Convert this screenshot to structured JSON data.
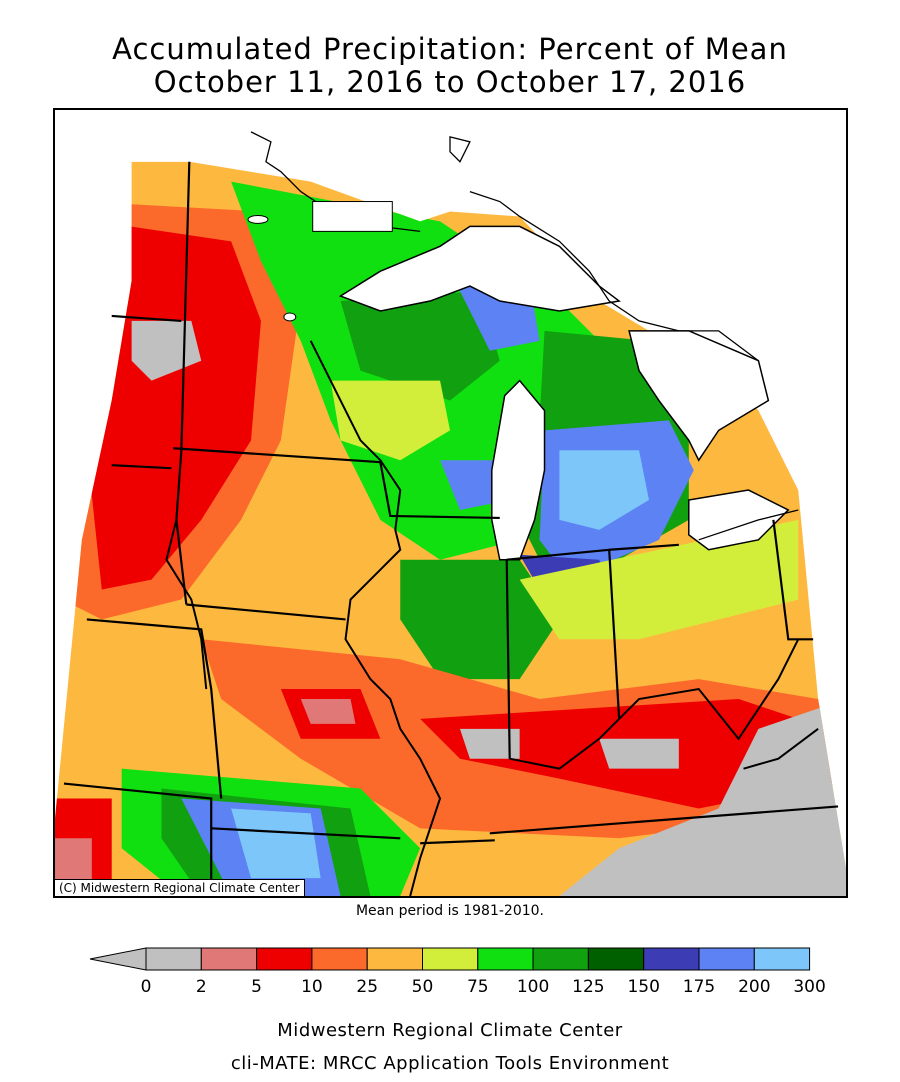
{
  "title": {
    "line1": "Accumulated Precipitation: Percent of Mean",
    "line2": "October 11, 2016 to October 17, 2016"
  },
  "credit": "(C) Midwestern Regional Climate Center",
  "mean_period": "Mean period is 1981-2010.",
  "footer": {
    "line1": "Midwestern Regional Climate Center",
    "line2": "cli-MATE: MRCC Application Tools Environment"
  },
  "legend": {
    "ticks": [
      "0",
      "2",
      "5",
      "10",
      "25",
      "50",
      "75",
      "100",
      "125",
      "150",
      "175",
      "200",
      "300"
    ],
    "colors": [
      "#c0c0c0",
      "#e07878",
      "#ee0000",
      "#fb6a2a",
      "#fdb93f",
      "#d2ee3a",
      "#10e010",
      "#10a010",
      "#006000",
      "#3c3cb4",
      "#5c82f4",
      "#7cc6fa"
    ],
    "under_color": "#c0c0c0"
  },
  "map": {
    "colors": {
      "gray": "#c0c0c0",
      "pink": "#e07878",
      "red": "#ee0000",
      "orange_red": "#fb6a2a",
      "orange": "#fdb93f",
      "yellow_green": "#d2ee3a",
      "green": "#10e010",
      "mid_green": "#10a010",
      "dark_green": "#006000",
      "navy": "#3c3cb4",
      "blue": "#5c82f4",
      "light_blue": "#7cc6fa",
      "water": "#ffffff"
    }
  }
}
